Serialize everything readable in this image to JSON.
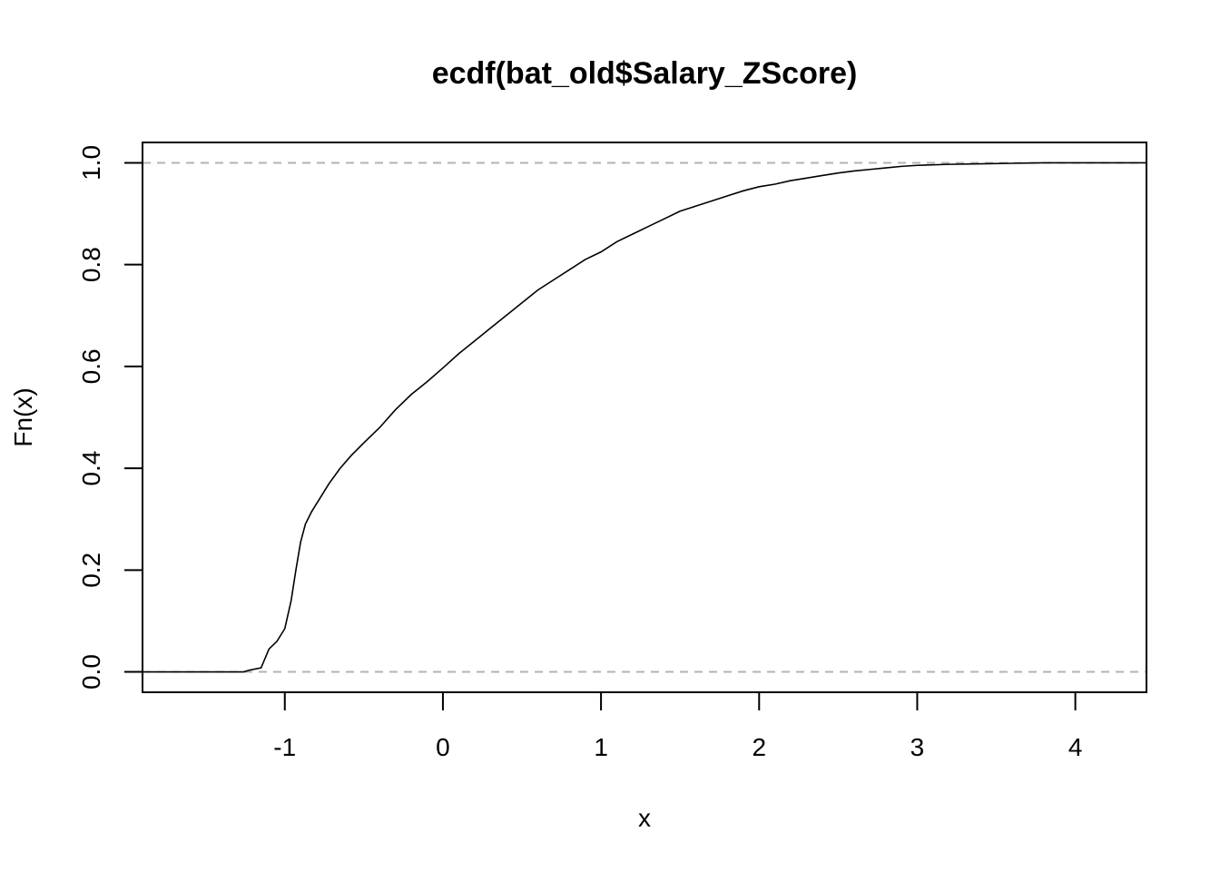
{
  "chart_data": {
    "type": "line",
    "title": "ecdf(bat_old$Salary_ZScore)",
    "xlabel": "x",
    "ylabel": "Fn(x)",
    "xlim": [
      -1.9,
      4.45
    ],
    "ylim": [
      -0.04,
      1.04
    ],
    "x_ticks": [
      -1,
      0,
      1,
      2,
      3,
      4
    ],
    "x_tick_labels": [
      "-1",
      "0",
      "1",
      "2",
      "3",
      "4"
    ],
    "y_ticks": [
      0,
      0.2,
      0.4,
      0.6,
      0.8,
      1.0
    ],
    "y_tick_labels": [
      "0.0",
      "0.2",
      "0.4",
      "0.6",
      "0.8",
      "1.0"
    ],
    "reference_lines": [
      0,
      1
    ],
    "grid": false,
    "legend": "none",
    "series": [
      {
        "x": [
          -1.9,
          -1.26,
          -1.23,
          -1.15,
          -1.1,
          -1.05,
          -1.0,
          -0.96,
          -0.93,
          -0.9,
          -0.87,
          -0.83,
          -0.78,
          -0.72,
          -0.65,
          -0.58,
          -0.5,
          -0.4,
          -0.3,
          -0.2,
          -0.1,
          0.0,
          0.1,
          0.2,
          0.3,
          0.4,
          0.5,
          0.6,
          0.7,
          0.8,
          0.9,
          1.0,
          1.1,
          1.2,
          1.3,
          1.4,
          1.5,
          1.6,
          1.7,
          1.8,
          1.9,
          2.0,
          2.1,
          2.2,
          2.3,
          2.4,
          2.5,
          2.6,
          2.7,
          2.8,
          2.9,
          3.0,
          3.2,
          3.4,
          3.6,
          3.8,
          4.0,
          4.45
        ],
        "y": [
          0.0,
          0.0,
          0.003,
          0.008,
          0.045,
          0.06,
          0.085,
          0.14,
          0.2,
          0.255,
          0.29,
          0.315,
          0.34,
          0.37,
          0.4,
          0.425,
          0.45,
          0.48,
          0.515,
          0.545,
          0.57,
          0.597,
          0.625,
          0.65,
          0.675,
          0.7,
          0.725,
          0.75,
          0.77,
          0.79,
          0.81,
          0.825,
          0.845,
          0.86,
          0.875,
          0.89,
          0.905,
          0.915,
          0.925,
          0.935,
          0.945,
          0.953,
          0.958,
          0.965,
          0.97,
          0.975,
          0.98,
          0.984,
          0.987,
          0.99,
          0.993,
          0.995,
          0.997,
          0.998,
          0.999,
          1.0,
          1.0,
          1.0
        ]
      }
    ]
  }
}
